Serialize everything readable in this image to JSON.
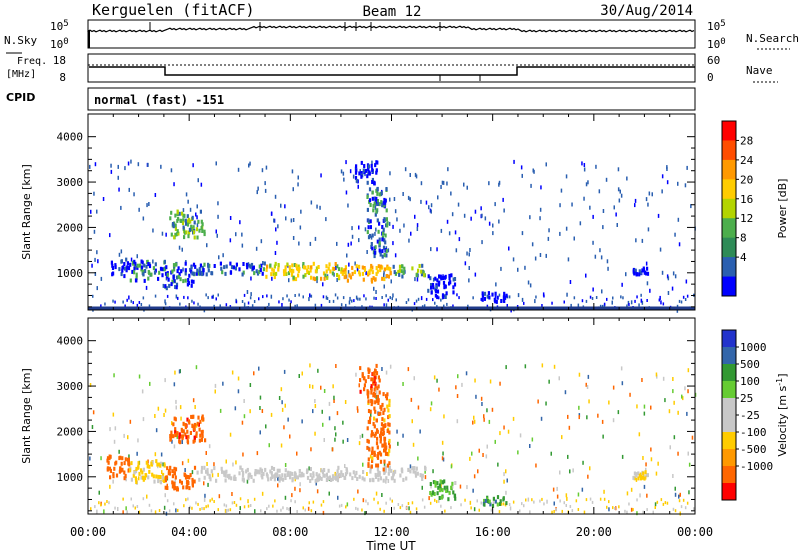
{
  "header": {
    "station": "Kerguelen (fitACF)",
    "beam": "Beam 12",
    "date": "30/Aug/2014"
  },
  "noise_panel": {
    "left_label": "N.Sky",
    "right_label": "N.Search",
    "left_ticks": [
      "10^5",
      "10^0"
    ],
    "right_ticks": [
      "10^5",
      "10^0"
    ]
  },
  "freq_panel": {
    "left_label_1": "Freq.",
    "left_label_2": "[MHz]",
    "right_label": "Nave",
    "left_ticks": [
      "18",
      "8"
    ],
    "right_ticks": [
      "60",
      "0"
    ]
  },
  "cpid": {
    "label": "CPID",
    "value": "normal (fast) -151"
  },
  "x_axis": {
    "label": "Time UT",
    "ticks": [
      "00:00",
      "04:00",
      "08:00",
      "12:00",
      "16:00",
      "20:00",
      "00:00"
    ]
  },
  "power_panel": {
    "ylabel": "Slant Range [km]",
    "yticks": [
      "4000",
      "3000",
      "2000",
      "1000"
    ],
    "colorbar_label": "Power [dB]",
    "colorbar_ticks": [
      "28",
      "24",
      "20",
      "16",
      "12",
      "8",
      "4"
    ],
    "colorbar_colors": [
      "#ff0000",
      "#ff4d00",
      "#ff9900",
      "#ffcc00",
      "#b3d400",
      "#4cae4c",
      "#2e8b57",
      "#2a5fb0",
      "#0000ff"
    ]
  },
  "velocity_panel": {
    "ylabel": "Slant Range [km]",
    "yticks": [
      "4000",
      "3000",
      "2000",
      "1000"
    ],
    "colorbar_label": "Velocity [m s^-1]",
    "colorbar_ticks": [
      "1000",
      "500",
      "100",
      "25",
      "-25",
      "-100",
      "-500",
      "-1000"
    ],
    "colorbar_colors": [
      "#2233cc",
      "#3366aa",
      "#339933",
      "#66cc33",
      "#c8c8c8",
      "#c8c8c8",
      "#ffcc00",
      "#ff9900",
      "#ff6600",
      "#ff0000"
    ]
  },
  "chart_data": [
    {
      "type": "heatmap",
      "title": "Power",
      "xlabel": "Time UT",
      "ylabel": "Slant Range [km]",
      "xlim": [
        0,
        24
      ],
      "ylim": [
        180,
        4500
      ],
      "colorbar": "Power [dB]",
      "regions": [
        {
          "t0": 0.9,
          "t1": 1.6,
          "r0": 950,
          "r1": 1350,
          "value": 6
        },
        {
          "t0": 1.6,
          "t1": 3.0,
          "r0": 850,
          "r1": 1300,
          "value": 8
        },
        {
          "t0": 3.0,
          "t1": 4.2,
          "r0": 700,
          "r1": 1250,
          "value": 7
        },
        {
          "t0": 3.2,
          "t1": 4.6,
          "r0": 1800,
          "r1": 2400,
          "value": 12
        },
        {
          "t0": 4.2,
          "t1": 7.0,
          "r0": 1000,
          "r1": 1250,
          "value": 8
        },
        {
          "t0": 7.0,
          "t1": 10.0,
          "r0": 900,
          "r1": 1250,
          "value": 17
        },
        {
          "t0": 10.0,
          "t1": 12.0,
          "r0": 850,
          "r1": 1200,
          "value": 20
        },
        {
          "t0": 12.0,
          "t1": 13.3,
          "r0": 950,
          "r1": 1200,
          "value": 12
        },
        {
          "t0": 10.5,
          "t1": 11.4,
          "r0": 3000,
          "r1": 3500,
          "value": 6
        },
        {
          "t0": 11.0,
          "t1": 11.8,
          "r0": 1400,
          "r1": 2900,
          "value": 8
        },
        {
          "t0": 13.4,
          "t1": 14.5,
          "r0": 500,
          "r1": 1000,
          "value": 5
        },
        {
          "t0": 15.5,
          "t1": 16.6,
          "r0": 400,
          "r1": 600,
          "value": 4
        },
        {
          "t0": 21.5,
          "t1": 22.1,
          "r0": 1000,
          "r1": 1150,
          "value": 4
        }
      ]
    },
    {
      "type": "heatmap",
      "title": "Velocity",
      "xlabel": "Time UT",
      "ylabel": "Slant Range [km]",
      "xlim": [
        0,
        24
      ],
      "ylim": [
        180,
        4500
      ],
      "colorbar": "Velocity [m s^-1]",
      "regions": [
        {
          "t0": 0.7,
          "t1": 1.6,
          "r0": 1000,
          "r1": 1500,
          "value": -300
        },
        {
          "t0": 1.6,
          "t1": 3.0,
          "r0": 900,
          "r1": 1400,
          "value": -40
        },
        {
          "t0": 3.0,
          "t1": 4.2,
          "r0": 750,
          "r1": 1250,
          "value": -200
        },
        {
          "t0": 3.2,
          "t1": 4.6,
          "r0": 1800,
          "r1": 2400,
          "value": -400
        },
        {
          "t0": 4.2,
          "t1": 13.3,
          "r0": 950,
          "r1": 1250,
          "value": 0
        },
        {
          "t0": 10.7,
          "t1": 11.5,
          "r0": 2900,
          "r1": 3500,
          "value": -400
        },
        {
          "t0": 11.0,
          "t1": 11.9,
          "r0": 1200,
          "r1": 2900,
          "value": -150
        },
        {
          "t0": 13.4,
          "t1": 14.5,
          "r0": 550,
          "r1": 950,
          "value": 50
        },
        {
          "t0": 15.5,
          "t1": 16.5,
          "r0": 400,
          "r1": 600,
          "value": 80
        },
        {
          "t0": 21.5,
          "t1": 22.1,
          "r0": 1000,
          "r1": 1150,
          "value": -30
        }
      ]
    }
  ]
}
